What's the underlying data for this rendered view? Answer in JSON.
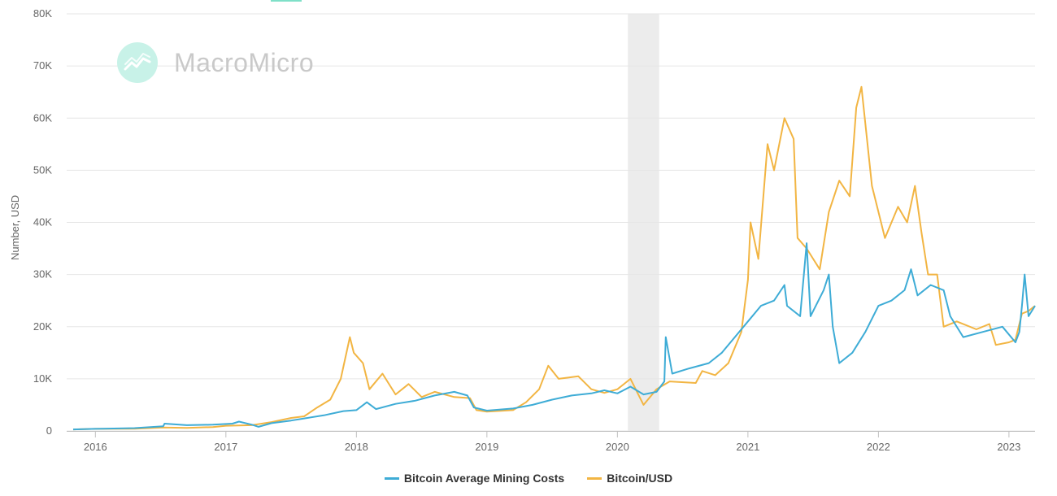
{
  "watermark": {
    "text": "MacroMicro",
    "logo_icon": "trend-line-icon",
    "logo_color": "#b8efe2"
  },
  "top_tab_color": "#7fe0c8",
  "colors": {
    "mining": "#3eacd6",
    "btc": "#f2b543",
    "grid": "#e6e6e6",
    "band": "#ececec",
    "axis_text": "#666666"
  },
  "chart_data": {
    "type": "line",
    "ylabel": "Number, USD",
    "ylim": [
      0,
      80000
    ],
    "yticks": [
      0,
      10000,
      20000,
      30000,
      40000,
      50000,
      60000,
      70000,
      80000
    ],
    "ytick_labels": [
      "0",
      "10K",
      "20K",
      "30K",
      "40K",
      "50K",
      "60K",
      "70K",
      "80K"
    ],
    "xlim": [
      2015.78,
      2023.2
    ],
    "xticks": [
      2016,
      2017,
      2018,
      2019,
      2020,
      2021,
      2022,
      2023
    ],
    "xtick_labels": [
      "2016",
      "2017",
      "2018",
      "2019",
      "2020",
      "2021",
      "2022",
      "2023"
    ],
    "shaded_band": [
      2020.08,
      2020.32
    ],
    "grid": true,
    "legend_position": "bottom-center",
    "series": [
      {
        "name": "Bitcoin Average Mining Costs",
        "color": "#3eacd6",
        "points": [
          [
            2015.83,
            300
          ],
          [
            2016.0,
            400
          ],
          [
            2016.3,
            550
          ],
          [
            2016.52,
            900
          ],
          [
            2016.53,
            1400
          ],
          [
            2016.7,
            1100
          ],
          [
            2016.9,
            1200
          ],
          [
            2017.05,
            1400
          ],
          [
            2017.1,
            1800
          ],
          [
            2017.2,
            1200
          ],
          [
            2017.25,
            800
          ],
          [
            2017.35,
            1500
          ],
          [
            2017.5,
            2000
          ],
          [
            2017.6,
            2400
          ],
          [
            2017.75,
            3000
          ],
          [
            2017.9,
            3800
          ],
          [
            2018.0,
            4000
          ],
          [
            2018.08,
            5500
          ],
          [
            2018.15,
            4200
          ],
          [
            2018.3,
            5200
          ],
          [
            2018.45,
            5800
          ],
          [
            2018.6,
            6800
          ],
          [
            2018.75,
            7500
          ],
          [
            2018.85,
            6800
          ],
          [
            2018.9,
            4500
          ],
          [
            2019.0,
            3900
          ],
          [
            2019.2,
            4300
          ],
          [
            2019.35,
            5000
          ],
          [
            2019.5,
            6000
          ],
          [
            2019.65,
            6800
          ],
          [
            2019.8,
            7200
          ],
          [
            2019.9,
            7800
          ],
          [
            2020.0,
            7200
          ],
          [
            2020.1,
            8500
          ],
          [
            2020.2,
            7000
          ],
          [
            2020.3,
            7500
          ],
          [
            2020.36,
            9500
          ],
          [
            2020.37,
            18000
          ],
          [
            2020.42,
            11000
          ],
          [
            2020.55,
            12000
          ],
          [
            2020.7,
            13000
          ],
          [
            2020.8,
            15000
          ],
          [
            2020.9,
            18000
          ],
          [
            2021.0,
            21000
          ],
          [
            2021.1,
            24000
          ],
          [
            2021.2,
            25000
          ],
          [
            2021.28,
            28000
          ],
          [
            2021.3,
            24000
          ],
          [
            2021.4,
            22000
          ],
          [
            2021.45,
            36000
          ],
          [
            2021.48,
            22000
          ],
          [
            2021.58,
            27000
          ],
          [
            2021.62,
            30000
          ],
          [
            2021.65,
            20000
          ],
          [
            2021.7,
            13000
          ],
          [
            2021.8,
            15000
          ],
          [
            2021.9,
            19000
          ],
          [
            2022.0,
            24000
          ],
          [
            2022.1,
            25000
          ],
          [
            2022.2,
            27000
          ],
          [
            2022.25,
            31000
          ],
          [
            2022.3,
            26000
          ],
          [
            2022.4,
            28000
          ],
          [
            2022.5,
            27000
          ],
          [
            2022.55,
            22000
          ],
          [
            2022.65,
            18000
          ],
          [
            2022.8,
            19000
          ],
          [
            2022.95,
            20000
          ],
          [
            2023.05,
            17000
          ],
          [
            2023.08,
            19000
          ],
          [
            2023.1,
            24000
          ],
          [
            2023.12,
            30000
          ],
          [
            2023.15,
            22000
          ],
          [
            2023.2,
            24000
          ]
        ]
      },
      {
        "name": "Bitcoin/USD",
        "color": "#f2b543",
        "points": [
          [
            2015.83,
            300
          ],
          [
            2016.0,
            400
          ],
          [
            2016.3,
            420
          ],
          [
            2016.52,
            650
          ],
          [
            2016.7,
            600
          ],
          [
            2016.9,
            750
          ],
          [
            2017.0,
            1000
          ],
          [
            2017.2,
            1100
          ],
          [
            2017.35,
            1700
          ],
          [
            2017.5,
            2500
          ],
          [
            2017.6,
            2800
          ],
          [
            2017.7,
            4500
          ],
          [
            2017.8,
            6000
          ],
          [
            2017.88,
            10000
          ],
          [
            2017.95,
            18000
          ],
          [
            2017.98,
            15000
          ],
          [
            2018.05,
            13000
          ],
          [
            2018.1,
            8000
          ],
          [
            2018.2,
            11000
          ],
          [
            2018.3,
            7000
          ],
          [
            2018.4,
            9000
          ],
          [
            2018.5,
            6500
          ],
          [
            2018.6,
            7500
          ],
          [
            2018.75,
            6500
          ],
          [
            2018.87,
            6300
          ],
          [
            2018.92,
            4000
          ],
          [
            2019.0,
            3700
          ],
          [
            2019.2,
            4000
          ],
          [
            2019.3,
            5500
          ],
          [
            2019.4,
            8000
          ],
          [
            2019.47,
            12500
          ],
          [
            2019.55,
            10000
          ],
          [
            2019.7,
            10500
          ],
          [
            2019.8,
            8000
          ],
          [
            2019.9,
            7300
          ],
          [
            2020.0,
            8000
          ],
          [
            2020.1,
            10000
          ],
          [
            2020.2,
            5000
          ],
          [
            2020.3,
            8000
          ],
          [
            2020.4,
            9500
          ],
          [
            2020.6,
            9200
          ],
          [
            2020.65,
            11500
          ],
          [
            2020.75,
            10700
          ],
          [
            2020.85,
            13000
          ],
          [
            2020.95,
            19000
          ],
          [
            2021.0,
            29000
          ],
          [
            2021.02,
            40000
          ],
          [
            2021.08,
            33000
          ],
          [
            2021.15,
            55000
          ],
          [
            2021.2,
            50000
          ],
          [
            2021.28,
            60000
          ],
          [
            2021.35,
            56000
          ],
          [
            2021.38,
            37000
          ],
          [
            2021.45,
            35000
          ],
          [
            2021.5,
            33000
          ],
          [
            2021.55,
            31000
          ],
          [
            2021.62,
            42000
          ],
          [
            2021.7,
            48000
          ],
          [
            2021.78,
            45000
          ],
          [
            2021.83,
            62000
          ],
          [
            2021.87,
            66000
          ],
          [
            2021.95,
            47000
          ],
          [
            2022.05,
            37000
          ],
          [
            2022.15,
            43000
          ],
          [
            2022.22,
            40000
          ],
          [
            2022.28,
            47000
          ],
          [
            2022.33,
            38000
          ],
          [
            2022.38,
            30000
          ],
          [
            2022.45,
            30000
          ],
          [
            2022.5,
            20000
          ],
          [
            2022.6,
            21000
          ],
          [
            2022.75,
            19500
          ],
          [
            2022.85,
            20500
          ],
          [
            2022.9,
            16500
          ],
          [
            2023.0,
            17000
          ],
          [
            2023.05,
            17500
          ],
          [
            2023.1,
            22500
          ],
          [
            2023.15,
            23000
          ],
          [
            2023.2,
            24000
          ]
        ]
      }
    ]
  }
}
